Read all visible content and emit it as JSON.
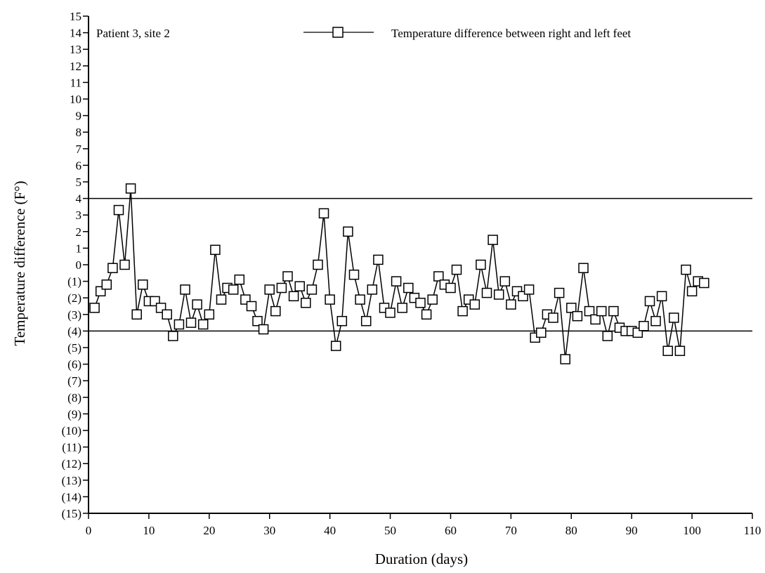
{
  "chart_data": {
    "type": "line",
    "title": "",
    "annotation": "Patient 3, site 2",
    "xlabel": "Duration (days)",
    "ylabel": "Temperature difference (F°)",
    "xlim": [
      0,
      110
    ],
    "ylim": [
      -15,
      15
    ],
    "x_ticks": [
      0,
      10,
      20,
      30,
      40,
      50,
      60,
      70,
      80,
      90,
      100,
      110
    ],
    "x_tick_labels": [
      "0",
      "10",
      "20",
      "30",
      "40",
      "50",
      "60",
      "70",
      "80",
      "90",
      "100",
      "110"
    ],
    "y_ticks": [
      15,
      14,
      13,
      12,
      11,
      10,
      9,
      8,
      7,
      6,
      5,
      4,
      3,
      2,
      1,
      0,
      -1,
      -2,
      -3,
      -4,
      -5,
      -6,
      -7,
      -8,
      -9,
      -10,
      -11,
      -12,
      -13,
      -14,
      -15
    ],
    "y_tick_labels": [
      "15",
      "14",
      "13",
      "12",
      "11",
      "10",
      "9",
      "8",
      "7",
      "6",
      "5",
      "4",
      "3",
      "2",
      "1",
      "0",
      "(1)",
      "(2)",
      "(3)",
      "(4)",
      "(5)",
      "(6)",
      "(7)",
      "(8)",
      "(9)",
      "(10)",
      "(11)",
      "(12)",
      "(13)",
      "(14)",
      "(15)"
    ],
    "reference_lines": [
      4,
      -4
    ],
    "legend": {
      "label": "Temperature difference between right and left feet",
      "position": "top-right",
      "marker": "open-square"
    },
    "grid": false,
    "series": [
      {
        "name": "Temperature difference between right and left feet",
        "marker": "square",
        "x": [
          1,
          2,
          3,
          4,
          5,
          6,
          7,
          8,
          9,
          10,
          11,
          12,
          13,
          14,
          15,
          16,
          17,
          18,
          19,
          20,
          21,
          22,
          23,
          24,
          25,
          26,
          27,
          28,
          29,
          30,
          31,
          32,
          33,
          34,
          35,
          36,
          37,
          38,
          39,
          40,
          41,
          42,
          43,
          44,
          45,
          46,
          47,
          48,
          49,
          50,
          51,
          52,
          53,
          54,
          55,
          56,
          57,
          58,
          59,
          60,
          61,
          62,
          63,
          64,
          65,
          66,
          67,
          68,
          69,
          70,
          71,
          72,
          73,
          74,
          75,
          76,
          77,
          78,
          79,
          80,
          81,
          82,
          83,
          84,
          85,
          86,
          87,
          88,
          89,
          90,
          91,
          92,
          93,
          94,
          95,
          96,
          97,
          98,
          99,
          100,
          101,
          102
        ],
        "y": [
          -2.6,
          -1.6,
          -1.2,
          -0.2,
          3.3,
          0,
          4.6,
          -3,
          -1.2,
          -2.2,
          -2.2,
          -2.6,
          -3,
          -4.3,
          -3.6,
          -1.5,
          -3.5,
          -2.4,
          -3.6,
          -3,
          0.9,
          -2.1,
          -1.4,
          -1.5,
          -0.9,
          -2.1,
          -2.5,
          -3.4,
          -3.9,
          -1.5,
          -2.8,
          -1.4,
          -0.7,
          -1.9,
          -1.3,
          -2.3,
          -1.5,
          0,
          3.1,
          -2.1,
          -4.9,
          -3.4,
          2,
          -0.6,
          -2.1,
          -3.4,
          -1.5,
          0.3,
          -2.6,
          -2.9,
          -1,
          -2.6,
          -1.4,
          -2,
          -2.3,
          -3,
          -2.1,
          -0.7,
          -1.2,
          -1.4,
          -0.3,
          -2.8,
          -2.1,
          -2.4,
          0,
          -1.7,
          1.5,
          -1.8,
          -1,
          -2.4,
          -1.6,
          -1.9,
          -1.5,
          -4.4,
          -4.1,
          -3,
          -3.2,
          -1.7,
          -5.7,
          -2.6,
          -3.1,
          -0.2,
          -2.8,
          -3.3,
          -2.8,
          -4.3,
          -2.8,
          -3.8,
          -4,
          -4,
          -4.1,
          -3.7,
          -2.2,
          -3.4,
          -1.9,
          -5.2,
          -3.2,
          -5.2,
          -0.3,
          -1.6,
          -1,
          -1.1
        ]
      }
    ]
  }
}
